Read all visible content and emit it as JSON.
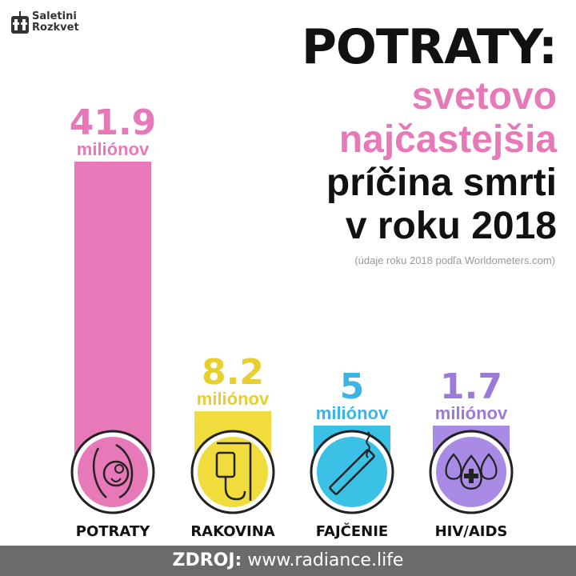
{
  "logo": {
    "line1": "Saletini",
    "line2": "Rozkvet"
  },
  "title": {
    "line1": "POTRATY:",
    "line2": "svetovo",
    "line3": "najčastejšia",
    "line4": "príčina smrti",
    "line5": "v roku 2018"
  },
  "source_note": "(údaje roku 2018 podľa Worldometers.com)",
  "footer": {
    "label": "ZDROJ:",
    "url": "www.radiance.life"
  },
  "chart_data": {
    "type": "bar",
    "categories": [
      "POTRATY",
      "RAKOVINA",
      "FAJČENIE",
      "HIV/AIDS"
    ],
    "values": [
      41.9,
      8.2,
      5,
      1.7
    ],
    "value_labels": [
      "41.9",
      "8.2",
      "5",
      "1.7"
    ],
    "unit_label": "miliónov",
    "colors": [
      "#e879b9",
      "#f0dc3c",
      "#3cc1e6",
      "#a98be6"
    ],
    "label_colors": [
      "#e879b9",
      "#e6cf2e",
      "#3cb4e6",
      "#9b7ad8"
    ],
    "icons": [
      "pregnant-woman-icon",
      "iv-drip-icon",
      "cigarette-icon",
      "blood-drops-icon"
    ],
    "title": "",
    "xlabel": "",
    "ylabel": ""
  }
}
